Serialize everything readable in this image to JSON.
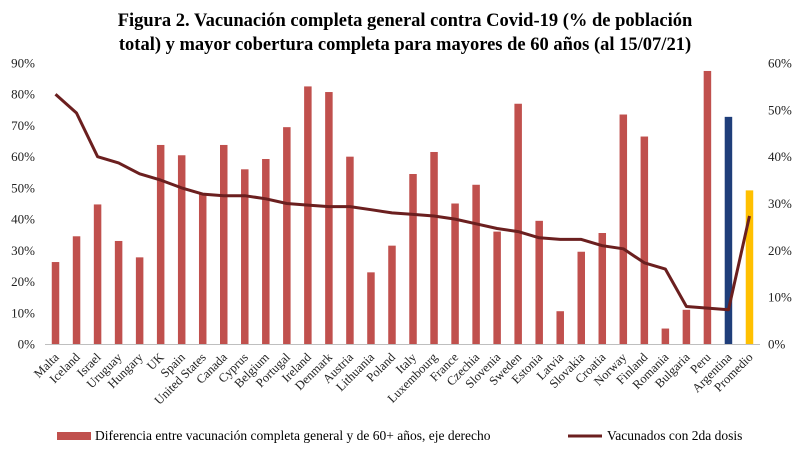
{
  "chart_data": {
    "type": "bar+line",
    "title_line1": "Figura 2. Vacunación completa general contra Covid-19 (% de población",
    "title_line2": "total) y mayor cobertura completa para mayores de 60 años (al 15/07/21)",
    "categories": [
      "Malta",
      "Iceland",
      "Israel",
      "Uruguay",
      "Hungary",
      "UK",
      "Spain",
      "United States",
      "Canada",
      "Cyprus",
      "Belgium",
      "Portugal",
      "Ireland",
      "Denmark",
      "Austria",
      "Lithuania",
      "Poland",
      "Italy",
      "Luxembourg",
      "France",
      "Czechia",
      "Slovenia",
      "Sweden",
      "Estonia",
      "Latvia",
      "Slovakia",
      "Croatia",
      "Norway",
      "Finland",
      "Romania",
      "Bulgaria",
      "Peru",
      "Argentina",
      "Promedio"
    ],
    "left_axis": {
      "min": 0,
      "max": 90,
      "step": 10,
      "tick_labels": [
        "0%",
        "10%",
        "20%",
        "30%",
        "40%",
        "50%",
        "60%",
        "70%",
        "80%",
        "90%"
      ]
    },
    "right_axis": {
      "min": 0,
      "max": 60,
      "step": 10,
      "tick_labels": [
        "0%",
        "10%",
        "20%",
        "30%",
        "40%",
        "50%",
        "60%"
      ]
    },
    "series": [
      {
        "name": "Diferencia entre vacunación completa general y de 60+ años, eje derecho",
        "type": "bar",
        "axis": "right",
        "color": "#C0504D",
        "special_colors": {
          "Argentina": "#1F3E7A",
          "Promedio": "#FFC000"
        },
        "values": [
          17.5,
          23.0,
          29.8,
          22.0,
          18.5,
          42.5,
          40.3,
          32.0,
          42.5,
          37.3,
          39.5,
          46.3,
          55.0,
          53.8,
          40.0,
          15.3,
          21.0,
          36.3,
          41.0,
          30.0,
          34.0,
          24.0,
          51.3,
          26.3,
          7.0,
          19.7,
          23.7,
          49.0,
          44.3,
          3.3,
          7.3,
          58.3,
          48.5,
          32.8
        ]
      },
      {
        "name": "Vacunados con 2da dosis",
        "type": "line",
        "axis": "left",
        "color": "#6B1F1F",
        "values": [
          80.0,
          74.0,
          60.0,
          58.0,
          54.5,
          52.5,
          50.0,
          48.0,
          47.5,
          47.5,
          46.5,
          45.0,
          44.5,
          44.0,
          44.0,
          43.0,
          42.0,
          41.5,
          41.0,
          40.0,
          38.5,
          37.0,
          36.0,
          34.0,
          33.5,
          33.5,
          31.5,
          30.5,
          26.0,
          24.0,
          12.0,
          11.5,
          11.0,
          41.0
        ]
      }
    ],
    "legend": {
      "position": "bottom"
    },
    "grid": false
  }
}
